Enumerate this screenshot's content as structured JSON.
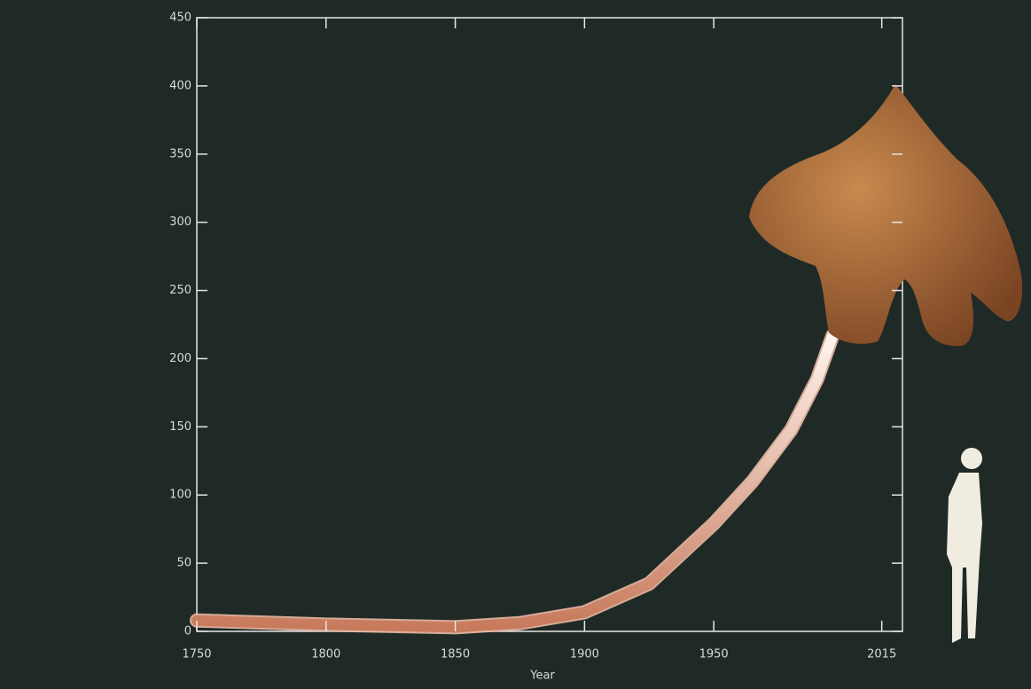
{
  "chart_data": {
    "type": "line",
    "x_label": "Year",
    "x": [
      1750,
      1800,
      1850,
      1875,
      1900,
      1925,
      1950,
      1965,
      1980,
      1990,
      1996
    ],
    "series": [
      {
        "color": "#e9b9a3",
        "values": [
          8,
          5,
          3,
          6,
          14,
          35,
          79,
          110,
          148,
          185,
          217
        ]
      }
    ],
    "xlim": [
      1750,
      2023
    ],
    "xticks": [
      1750,
      1800,
      1850,
      1900,
      1950,
      2015
    ],
    "ylim": [
      0,
      450
    ],
    "yticks": [
      0,
      50,
      100,
      150,
      200,
      250,
      300,
      350,
      400,
      450
    ]
  }
}
